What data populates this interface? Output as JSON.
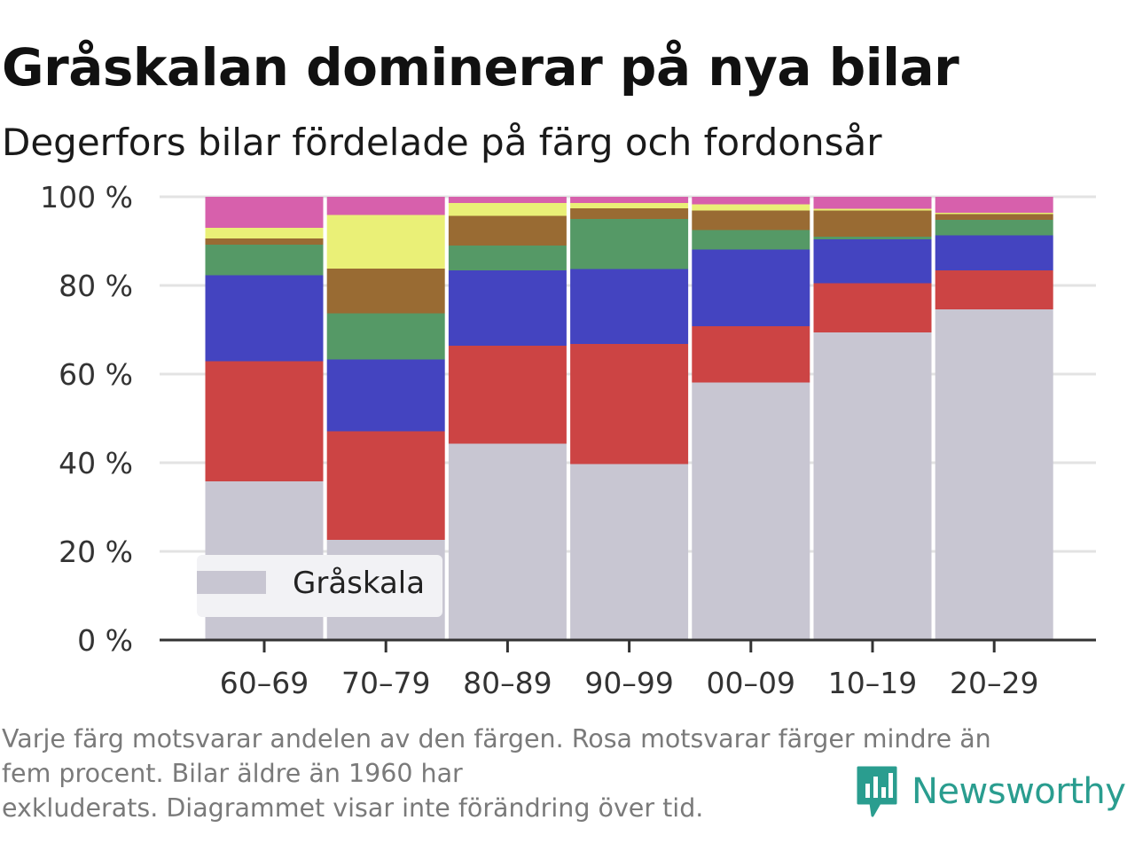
{
  "title": "Gråskalan dominerar på nya bilar",
  "subtitle": "Degerfors bilar fördelade på färg och fordonsår",
  "footnote": {
    "line1": "Varje färg motsvarar andelen av den färgen. Rosa motsvarar färger mindre än",
    "line2": "fem procent. Bilar äldre än 1960 har",
    "line3": "exkluderats. Diagrammet visar inte förändring över tid."
  },
  "brand": "Newsworthy",
  "colors": {
    "grayscale": "#c8c6d2",
    "red": "#cc4444",
    "blue": "#4444c0",
    "green": "#559966",
    "brown": "#996b33",
    "yellow": "#eaf077",
    "pink": "#d760ac",
    "brand": "#2a9d8f"
  },
  "chart_data": {
    "type": "bar",
    "stacked": true,
    "categories": [
      "60–69",
      "70–79",
      "80–89",
      "90–99",
      "00–09",
      "10–19",
      "20–29"
    ],
    "y_tick_labels": [
      "0 %",
      "20 %",
      "40 %",
      "60 %",
      "80 %",
      "100 %"
    ],
    "ylim": [
      0,
      100
    ],
    "grid": true,
    "legend": {
      "position": "bottom-left",
      "entries": [
        "Gråskala"
      ]
    },
    "series": [
      {
        "name": "Gråskala",
        "color": "grayscale",
        "values": [
          35.8,
          22.6,
          44.3,
          39.7,
          58.1,
          69.4,
          74.6
        ]
      },
      {
        "color": "red",
        "values": [
          27.1,
          24.5,
          22.1,
          27.1,
          12.7,
          11.1,
          8.8
        ]
      },
      {
        "color": "blue",
        "values": [
          19.4,
          16.2,
          17.0,
          16.9,
          17.3,
          9.9,
          7.9
        ]
      },
      {
        "color": "green",
        "values": [
          6.9,
          10.4,
          5.6,
          11.3,
          4.4,
          0.6,
          3.5
        ]
      },
      {
        "color": "brown",
        "values": [
          1.4,
          10.1,
          6.7,
          2.4,
          4.4,
          5.9,
          1.3
        ]
      },
      {
        "color": "yellow",
        "values": [
          2.4,
          12.1,
          2.9,
          1.2,
          1.4,
          0.4,
          0.3
        ]
      },
      {
        "color": "pink",
        "values": [
          7.0,
          4.1,
          1.4,
          1.4,
          1.7,
          2.7,
          3.6
        ]
      }
    ]
  }
}
